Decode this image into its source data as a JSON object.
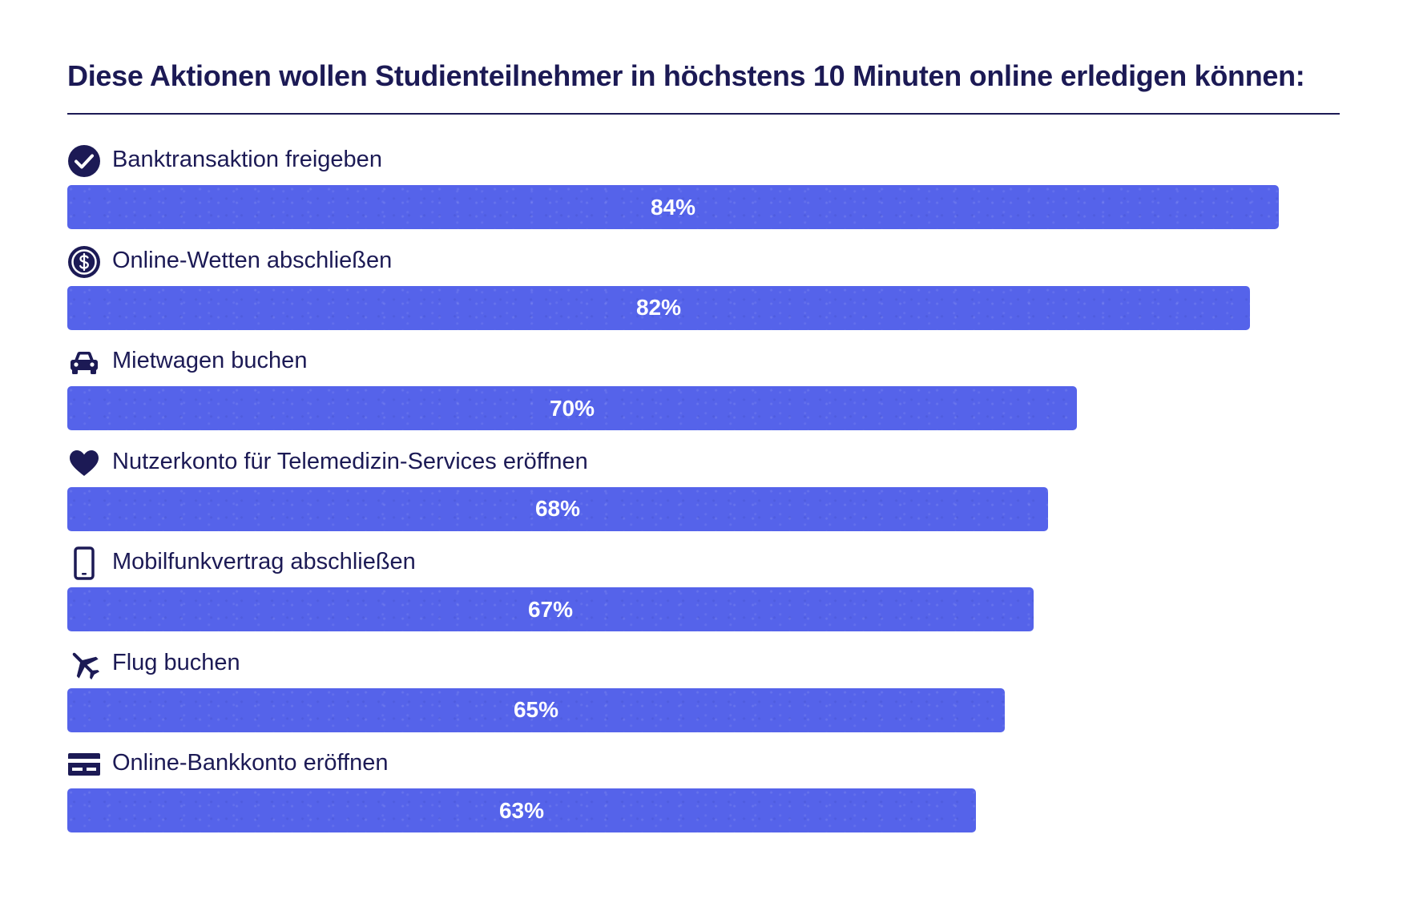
{
  "title": "Diese Aktionen wollen Studienteilnehmer in höchstens 10 Minuten online erledigen können:",
  "colors": {
    "bar": "#5563ea",
    "text": "#1c1a55",
    "bar_text": "#ffffff"
  },
  "chart_data": {
    "type": "bar",
    "orientation": "horizontal",
    "title": "Diese Aktionen wollen Studienteilnehmer in höchstens 10 Minuten online erledigen können:",
    "categories": [
      "Banktransaktion freigeben",
      "Online-Wetten abschließen",
      "Mietwagen buchen",
      "Nutzerkonto für Telemedizin-Services eröffnen",
      "Mobilfunkvertrag abschließen",
      "Flug buchen",
      "Online-Bankkonto eröffnen"
    ],
    "values": [
      84,
      82,
      70,
      68,
      67,
      65,
      63
    ],
    "value_labels": [
      "84%",
      "82%",
      "70%",
      "68%",
      "67%",
      "65%",
      "63%"
    ],
    "icons": [
      "check-circle-icon",
      "dollar-coin-icon",
      "car-icon",
      "heart-icon",
      "smartphone-icon",
      "airplane-icon",
      "credit-card-icon"
    ],
    "unit": "%",
    "xlim": [
      0,
      84
    ],
    "grid": false,
    "legend": "none"
  }
}
